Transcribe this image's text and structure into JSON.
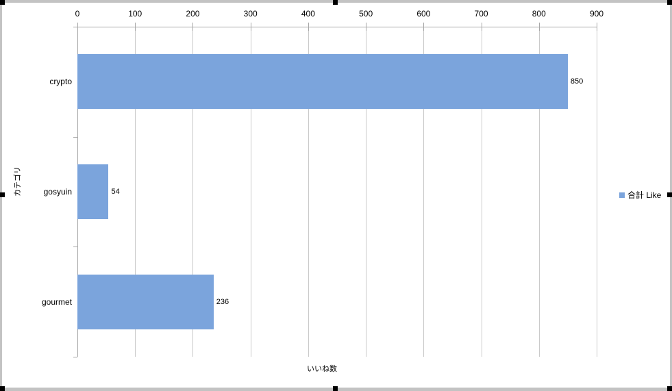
{
  "window": {
    "background": "#FFFFFF",
    "border_color": "#C3C3C3",
    "handle_color": "#000000"
  },
  "chart_data": {
    "type": "bar",
    "orientation": "horizontal",
    "title": "",
    "categories": [
      "crypto",
      "gosyuin",
      "gourmet"
    ],
    "series": [
      {
        "name": "合計 Like",
        "values": [
          850,
          54,
          236
        ]
      }
    ],
    "data_labels": [
      "850",
      "54",
      "236"
    ],
    "xlabel": "いいね数",
    "ylabel": "カテゴリ",
    "xlim": [
      0,
      900
    ],
    "xticks": [
      0,
      100,
      200,
      300,
      400,
      500,
      600,
      700,
      800,
      900
    ],
    "grid": true,
    "legend_position": "right",
    "colors": {
      "bar": "#7BA4DC",
      "gridline": "#C9C9C9",
      "axis": "#A6A6A6",
      "text": "#000000"
    }
  }
}
